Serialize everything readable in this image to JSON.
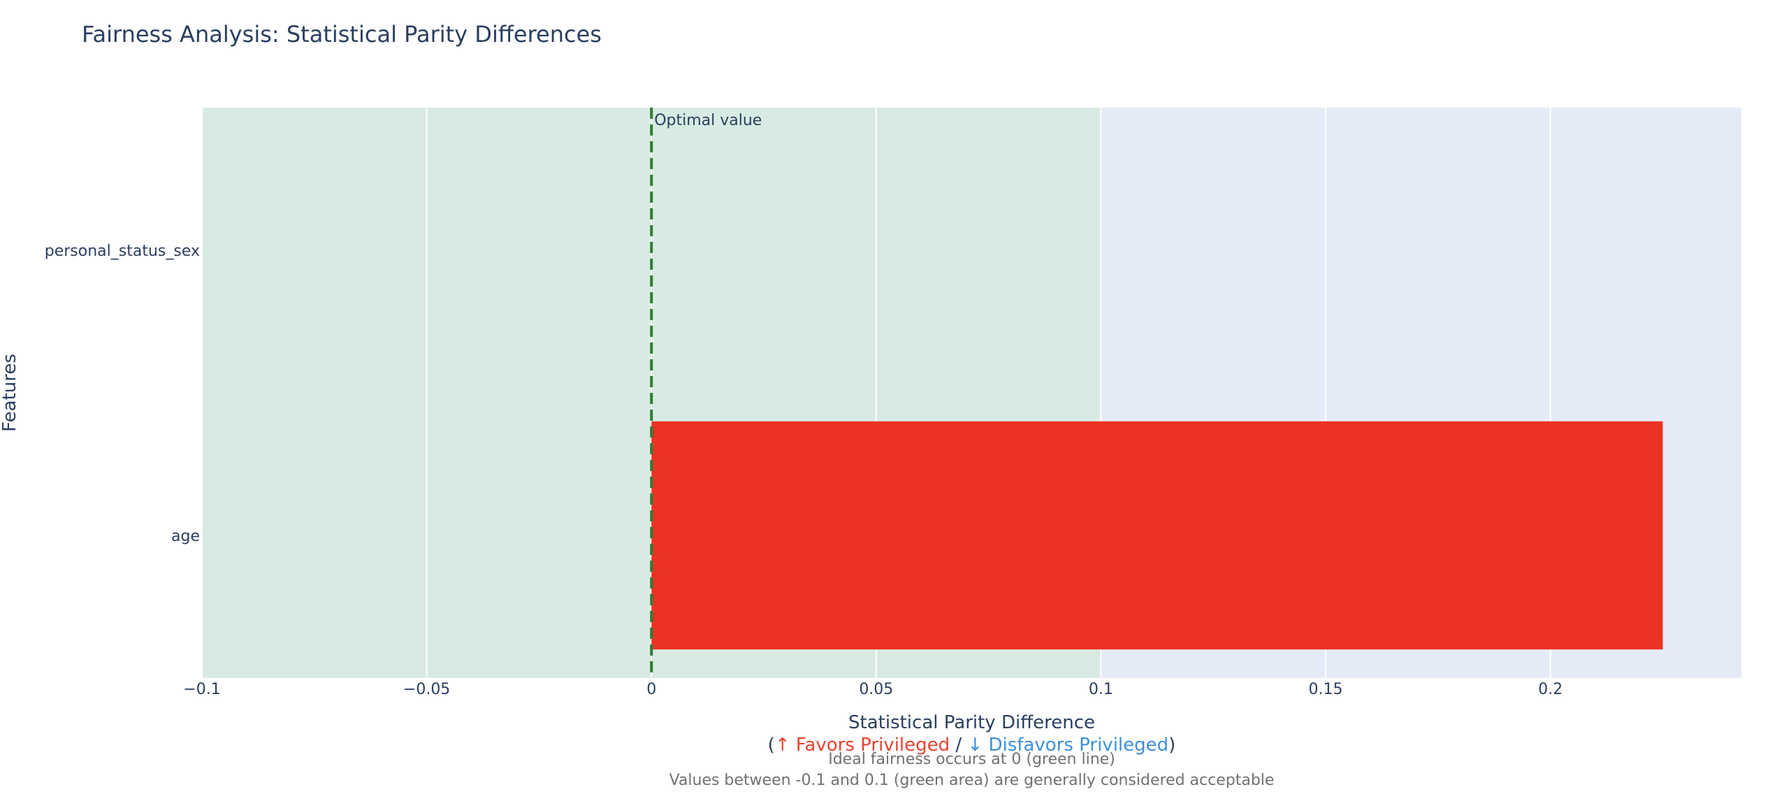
{
  "chart_data": {
    "type": "bar",
    "orientation": "horizontal",
    "title": "Fairness Analysis: Statistical Parity Differences",
    "xlabel": "Statistical Parity Difference",
    "xlabel_legend": {
      "open": "(",
      "favors": "↑ Favors Privileged",
      "sep": " / ",
      "disfavors": "↓ Disfavors Privileged",
      "close": ")"
    },
    "ylabel": "Features",
    "categories": [
      "personal_status_sex",
      "age"
    ],
    "values": [
      0,
      0.225
    ],
    "bar_color": "#eb3323",
    "xlim": [
      -0.1,
      0.2425
    ],
    "xticks": [
      -0.1,
      -0.05,
      0,
      0.05,
      0.1,
      0.15,
      0.2
    ],
    "xtick_labels": [
      "−0.1",
      "−0.05",
      "0",
      "0.05",
      "0.1",
      "0.15",
      "0.2"
    ],
    "acceptable_band": [
      -0.1,
      0.1
    ],
    "band_color": "#d8ebe3",
    "plot_background": "#e5ebf6",
    "optimal_line": {
      "x": 0,
      "label": "Optimal value",
      "color": "#2f7d32"
    },
    "favors_color": "#e8432f",
    "disfavors_color": "#3d8fd9",
    "notes": [
      "Ideal fairness occurs at 0 (green line)",
      "Values between -0.1 and 0.1 (green area) are generally considered acceptable"
    ]
  }
}
